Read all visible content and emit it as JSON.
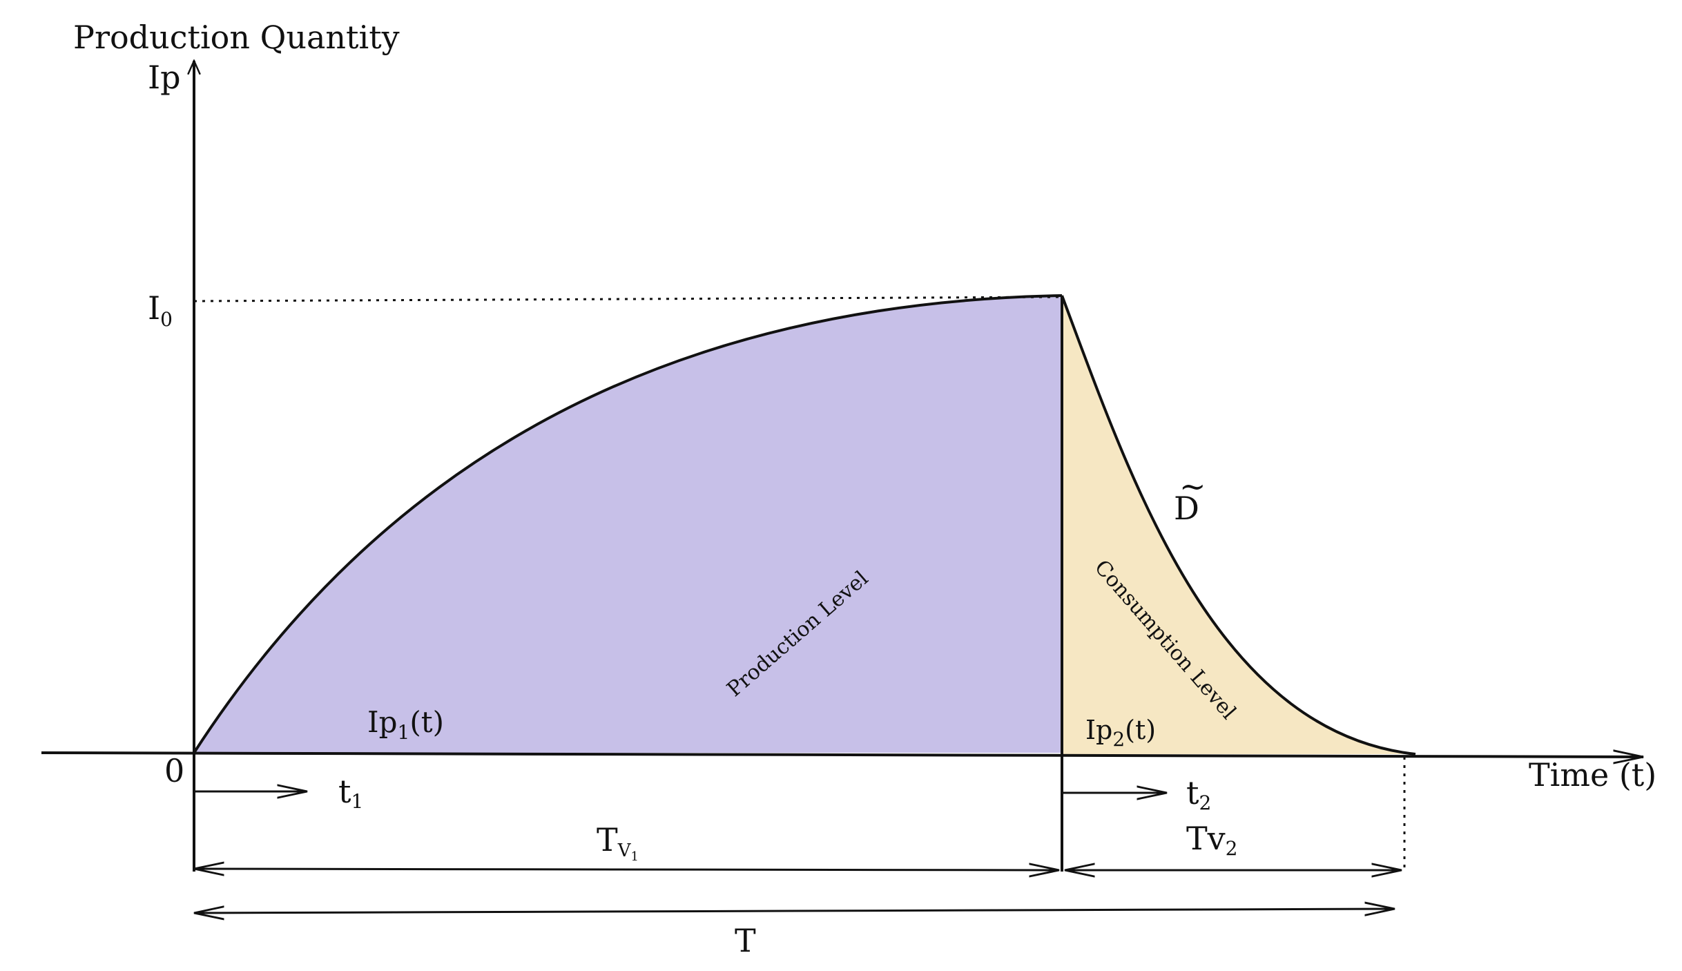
{
  "axes": {
    "y_title": "Production Quantity",
    "y_symbol": "Ip",
    "x_title": "Time (t)",
    "origin": "0",
    "i0": {
      "base": "I",
      "sub": "0"
    }
  },
  "regions": {
    "production": {
      "label": "Production Level",
      "func_base": "Ip",
      "func_sub": "1",
      "func_arg": "(t)",
      "color": "#c7c0e8"
    },
    "consumption": {
      "label": "Consumption Level",
      "func_base": "Ip",
      "func_sub": "2",
      "func_arg": "(t)",
      "color": "#f6e7c3"
    }
  },
  "demand": {
    "label": "D",
    "tilde": "~"
  },
  "timeline": {
    "t1": {
      "base": "t",
      "sub": "1"
    },
    "t2": {
      "base": "t",
      "sub": "2"
    },
    "tv1": {
      "base": "T",
      "sub": "V",
      "subsub": "1"
    },
    "tv2": {
      "base": "Tv",
      "sub": "2"
    },
    "total": "T"
  }
}
